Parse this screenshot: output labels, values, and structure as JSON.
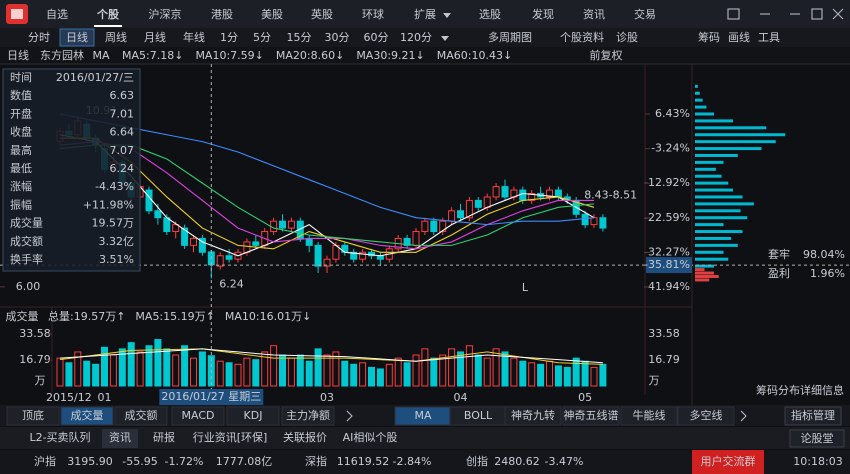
{
  "menu": {
    "items": [
      "自选",
      "个股",
      "沪深京",
      "港股",
      "美股",
      "英股",
      "环球",
      "扩展",
      "选股",
      "发现",
      "资讯",
      "交易"
    ],
    "active": 1
  },
  "toolbar": {
    "items": [
      "分时",
      "日线",
      "周线",
      "月线",
      "年线",
      "1分",
      "5分",
      "15分",
      "30分",
      "60分",
      "120分",
      "多周期图",
      "个股资料",
      "诊股"
    ],
    "active": 1,
    "right": [
      "筹码",
      "画线",
      "工具"
    ]
  },
  "info_row": {
    "period": "日线",
    "stock": "东方园林",
    "ma": "MA",
    "adjust": "前复权"
  },
  "chart_data": [
    {
      "type": "candlestick",
      "title": "东方园林",
      "categories": [
        null,
        "2015/12",
        null,
        null,
        null,
        "01",
        null,
        null,
        null,
        null,
        null,
        null,
        null,
        null,
        null,
        null,
        null,
        null,
        null,
        null,
        null,
        null,
        null,
        null,
        null,
        null,
        null,
        null,
        null,
        null,
        "03",
        null,
        null,
        null,
        null,
        null,
        null,
        null,
        null,
        null,
        null,
        null,
        null,
        null,
        null,
        "04",
        null,
        null,
        null,
        null,
        null,
        null,
        null,
        null,
        null,
        null,
        null,
        null,
        null,
        "05",
        null,
        null
      ],
      "open": [
        10.2,
        10.5,
        10.4,
        10.7,
        10.3,
        10.0,
        9.4,
        9.6,
        9.0,
        8.6,
        8.8,
        8.2,
        8.0,
        7.6,
        7.7,
        7.2,
        7.4,
        7.01,
        6.6,
        6.9,
        6.8,
        7.0,
        7.3,
        7.2,
        7.6,
        7.9,
        7.7,
        7.9,
        7.4,
        7.2,
        6.6,
        6.8,
        7.2,
        7.0,
        6.8,
        7.0,
        6.9,
        6.8,
        7.1,
        7.4,
        7.2,
        7.6,
        7.9,
        7.6,
        7.9,
        8.2,
        8.0,
        8.5,
        8.3,
        8.6,
        8.9,
        8.6,
        8.8,
        8.5,
        8.7,
        8.6,
        8.8,
        8.6,
        8.5,
        8.1,
        7.8,
        8.0
      ],
      "close": [
        10.5,
        10.4,
        10.8,
        10.3,
        10.1,
        9.4,
        9.6,
        9.0,
        8.6,
        8.9,
        8.2,
        8.0,
        7.6,
        7.8,
        7.2,
        7.4,
        7.0,
        6.64,
        6.9,
        6.8,
        7.0,
        7.3,
        7.2,
        7.6,
        7.9,
        7.7,
        7.9,
        7.4,
        7.2,
        6.6,
        6.8,
        7.2,
        7.0,
        6.8,
        7.0,
        6.9,
        6.8,
        7.1,
        7.4,
        7.2,
        7.6,
        7.9,
        7.6,
        7.9,
        8.2,
        8.0,
        8.5,
        8.3,
        8.6,
        8.9,
        8.6,
        8.8,
        8.5,
        8.7,
        8.6,
        8.8,
        8.6,
        8.5,
        8.1,
        7.8,
        8.0,
        7.7
      ],
      "high": [
        10.6,
        10.7,
        10.91,
        10.8,
        10.4,
        10.1,
        9.8,
        9.7,
        9.1,
        9.1,
        8.9,
        8.4,
        8.1,
        7.9,
        7.8,
        7.5,
        7.5,
        7.07,
        7.0,
        7.1,
        7.1,
        7.4,
        7.5,
        7.7,
        8.0,
        8.1,
        8.0,
        8.0,
        7.5,
        7.3,
        6.9,
        7.3,
        7.3,
        7.1,
        7.1,
        7.1,
        7.0,
        7.2,
        7.5,
        7.5,
        7.7,
        8.0,
        8.0,
        8.0,
        8.3,
        8.4,
        8.6,
        8.6,
        8.7,
        9.0,
        9.1,
        8.9,
        8.9,
        8.8,
        8.9,
        8.9,
        8.9,
        8.7,
        8.6,
        8.2,
        8.1,
        8.1
      ],
      "low": [
        10.1,
        10.3,
        10.3,
        10.2,
        9.9,
        9.3,
        9.2,
        8.9,
        8.4,
        8.5,
        8.1,
        7.8,
        7.5,
        7.4,
        7.1,
        7.0,
        6.9,
        6.24,
        6.5,
        6.7,
        6.7,
        6.9,
        7.1,
        7.1,
        7.5,
        7.6,
        7.6,
        7.3,
        7.0,
        6.4,
        6.4,
        6.7,
        6.9,
        6.7,
        6.7,
        6.8,
        6.6,
        6.7,
        7.0,
        7.1,
        7.1,
        7.5,
        7.5,
        7.5,
        7.8,
        7.9,
        7.9,
        8.2,
        8.2,
        8.5,
        8.5,
        8.5,
        8.4,
        8.4,
        8.5,
        8.5,
        8.5,
        8.4,
        8.0,
        7.7,
        7.7,
        7.6
      ],
      "up_color": "#ff3c3c",
      "down_color": "#00c8d0",
      "series": [
        {
          "name": "MA5:7.18↓",
          "color": "#ffffff",
          "x": [
            0,
            4,
            8,
            12,
            16,
            20,
            24,
            28,
            32,
            36,
            40,
            44,
            48,
            52,
            56,
            60
          ],
          "values": [
            10.4,
            10.2,
            9.2,
            8.0,
            7.3,
            6.9,
            7.3,
            7.8,
            7.0,
            6.9,
            7.1,
            7.8,
            8.3,
            8.7,
            8.6,
            8.0
          ]
        },
        {
          "name": "MA10:7.59↓",
          "color": "#f0d020",
          "x": [
            0,
            4,
            8,
            12,
            16,
            20,
            24,
            28,
            32,
            36,
            40,
            44,
            48,
            52,
            56,
            60
          ],
          "values": [
            10.3,
            10.3,
            9.6,
            8.6,
            7.7,
            7.2,
            7.1,
            7.6,
            7.3,
            7.0,
            7.0,
            7.5,
            8.1,
            8.5,
            8.6,
            8.3
          ]
        },
        {
          "name": "MA20:8.60↓",
          "color": "#e040e0",
          "x": [
            0,
            4,
            8,
            12,
            16,
            20,
            24,
            28,
            32,
            36,
            40,
            44,
            48,
            52,
            56,
            60
          ],
          "values": [
            10.1,
            10.2,
            10.0,
            9.3,
            8.5,
            7.7,
            7.3,
            7.4,
            7.4,
            7.2,
            7.1,
            7.3,
            7.8,
            8.2,
            8.5,
            8.5
          ]
        },
        {
          "name": "MA30:9.21↓",
          "color": "#30d070",
          "x": [
            0,
            4,
            8,
            12,
            16,
            20,
            24,
            28,
            32,
            36,
            40,
            44,
            48,
            52,
            56,
            60
          ],
          "values": [
            10.0,
            10.1,
            10.1,
            9.7,
            9.0,
            8.3,
            7.7,
            7.5,
            7.4,
            7.3,
            7.2,
            7.2,
            7.5,
            8.0,
            8.3,
            8.4
          ]
        },
        {
          "name": "MA60:10.43↓",
          "color": "#3c8cff",
          "x": [
            0,
            4,
            8,
            12,
            16,
            20,
            24,
            28,
            32,
            36,
            40,
            44,
            48,
            52,
            56,
            60
          ],
          "values": [
            11.0,
            10.8,
            10.6,
            10.4,
            10.2,
            9.9,
            9.5,
            9.1,
            8.7,
            8.3,
            8.0,
            7.9,
            7.8,
            7.9,
            7.9,
            8.0
          ]
        }
      ],
      "ylim": [
        5.62,
        12.33
      ],
      "yticks": [
        {
          "value": 6,
          "label": "6.00"
        }
      ],
      "y2lim": [
        -45.57,
        19.29
      ],
      "y2ticks": [
        {
          "value": 6.43,
          "label": "6.43%"
        },
        {
          "value": -3.24,
          "label": "-3.24%"
        },
        {
          "value": -12.92,
          "label": "-12.92%"
        },
        {
          "value": -22.59,
          "label": "-22.59%"
        },
        {
          "value": -32.27,
          "label": "-32.27%"
        },
        {
          "value": -41.94,
          "label": "-41.94%"
        }
      ],
      "annotations": [
        {
          "text": "10.91",
          "x": 2,
          "y": 10.91
        },
        {
          "text": "6.24",
          "x": 17,
          "y": 6.24
        },
        {
          "text": "8.43-8.51",
          "x": 58,
          "y": 8.47
        },
        {
          "text": "L",
          "x": 51,
          "y": 5.8
        }
      ],
      "cursor": {
        "index": 17,
        "value": 6.63,
        "right_label": "-35.81%",
        "date_label": "2016/01/27 星期三",
        "tooltip": [
          {
            "label": "时间",
            "value": "2016/01/27/三",
            "color": "#ffffff"
          },
          {
            "label": "数值",
            "value": "6.63",
            "color": "#30d070"
          },
          {
            "label": "开盘",
            "value": "7.01",
            "color": "#ff3c3c"
          },
          {
            "label": "收盘",
            "value": "6.64",
            "color": "#30d070"
          },
          {
            "label": "最高",
            "value": "7.07",
            "color": "#ff3c3c"
          },
          {
            "label": "最低",
            "value": "6.24",
            "color": "#30d070"
          },
          {
            "label": "涨幅",
            "value": "-4.43%",
            "color": "#30d070"
          },
          {
            "label": "振幅",
            "value": "+11.98%",
            "color": "#30d070"
          },
          {
            "label": "成交量",
            "value": "19.57万",
            "color": "#f0d020"
          },
          {
            "label": "成交额",
            "value": "3.32亿",
            "color": "#f0d020"
          },
          {
            "label": "换手率",
            "value": "3.51%",
            "color": "#f0d020"
          }
        ]
      }
    },
    {
      "type": "bar",
      "title": "成交量",
      "values": [
        18,
        15,
        22,
        16,
        14,
        25,
        20,
        24,
        28,
        22,
        26,
        30,
        24,
        20,
        26,
        18,
        22,
        19.57,
        16,
        15,
        14,
        18,
        17,
        22,
        26,
        20,
        18,
        20,
        16,
        24,
        20,
        22,
        16,
        14,
        15,
        12,
        11,
        14,
        18,
        15,
        20,
        24,
        18,
        20,
        24,
        22,
        26,
        20,
        18,
        24,
        22,
        18,
        16,
        15,
        14,
        16,
        13,
        12,
        18,
        16,
        12,
        14
      ],
      "legend": [
        {
          "text": "总量:19.57万↑",
          "color": "#30d0b0"
        },
        {
          "text": "MA5:15.19万↑",
          "color": "#f0d020"
        },
        {
          "text": "MA10:16.01万↓",
          "color": "#ffffff"
        }
      ],
      "series": [
        {
          "name": "MA5",
          "color": "#f0d020",
          "x": [
            0,
            8,
            16,
            24,
            32,
            40,
            48,
            56,
            61
          ],
          "values": [
            17,
            23,
            24,
            18,
            18,
            16,
            22,
            15,
            14
          ]
        },
        {
          "name": "MA10",
          "color": "#ffffff",
          "x": [
            0,
            8,
            16,
            24,
            32,
            40,
            48,
            56,
            61
          ],
          "values": [
            18,
            21,
            24,
            20,
            19,
            16,
            20,
            17,
            15
          ]
        }
      ],
      "ylim": [
        0,
        39.4
      ],
      "yticks": [
        16.79,
        33.58
      ],
      "unit": "万"
    },
    {
      "type": "chips",
      "xlim": [
        0,
        100
      ],
      "series": [
        {
          "name": "套牢",
          "share_label": "98.04%",
          "color": "#00b8d0",
          "y": [
            6.6,
            6.8,
            7.0,
            7.2,
            7.4,
            7.6,
            7.8,
            8.0,
            8.2,
            8.4,
            8.6,
            8.8,
            9.0,
            9.2,
            9.4,
            9.6,
            9.8,
            10.0,
            10.2,
            10.4,
            10.6,
            10.8,
            11.0,
            11.2,
            11.4,
            11.6,
            11.8
          ],
          "values": [
            20,
            35,
            30,
            45,
            38,
            50,
            30,
            55,
            48,
            62,
            50,
            40,
            35,
            28,
            22,
            30,
            45,
            70,
            85,
            95,
            75,
            40,
            20,
            12,
            8,
            5,
            3
          ]
        },
        {
          "name": "盈利",
          "share_label": "1.96%",
          "color": "#e04040",
          "y": [
            6.2,
            6.3,
            6.4,
            6.5
          ],
          "values": [
            15,
            25,
            20,
            10
          ]
        }
      ],
      "footer": "筹码分布详细信息"
    }
  ],
  "bottom_tabs": {
    "left": [
      "顶底",
      "成交量",
      "成交额",
      "MACD",
      "KDJ",
      "主力净额"
    ],
    "left_active": 1,
    "middle": [
      "MA",
      "BOLL",
      "神奇九转",
      "神奇五线谱",
      "牛能线",
      "多空线"
    ],
    "middle_active": 0,
    "manage": "指标管理"
  },
  "info_tabs": {
    "items": [
      "L2-买卖队列",
      "资讯",
      "研报",
      "行业资讯[环保]",
      "关联报价",
      "AI相似个股"
    ],
    "active": 1,
    "right": "论股堂"
  },
  "status": {
    "sh": {
      "name": "沪指",
      "price": "3195.90",
      "change": "-55.95",
      "pct": "-1.72%",
      "amount": "1777.08亿"
    },
    "sz": {
      "name": "深指",
      "price": "11619.52",
      "pct": "-2.84%"
    },
    "cy": {
      "name": "创指",
      "price": "2480.62",
      "pct": "-3.47%"
    },
    "group": "用户交流群",
    "time": "10:18:03"
  }
}
